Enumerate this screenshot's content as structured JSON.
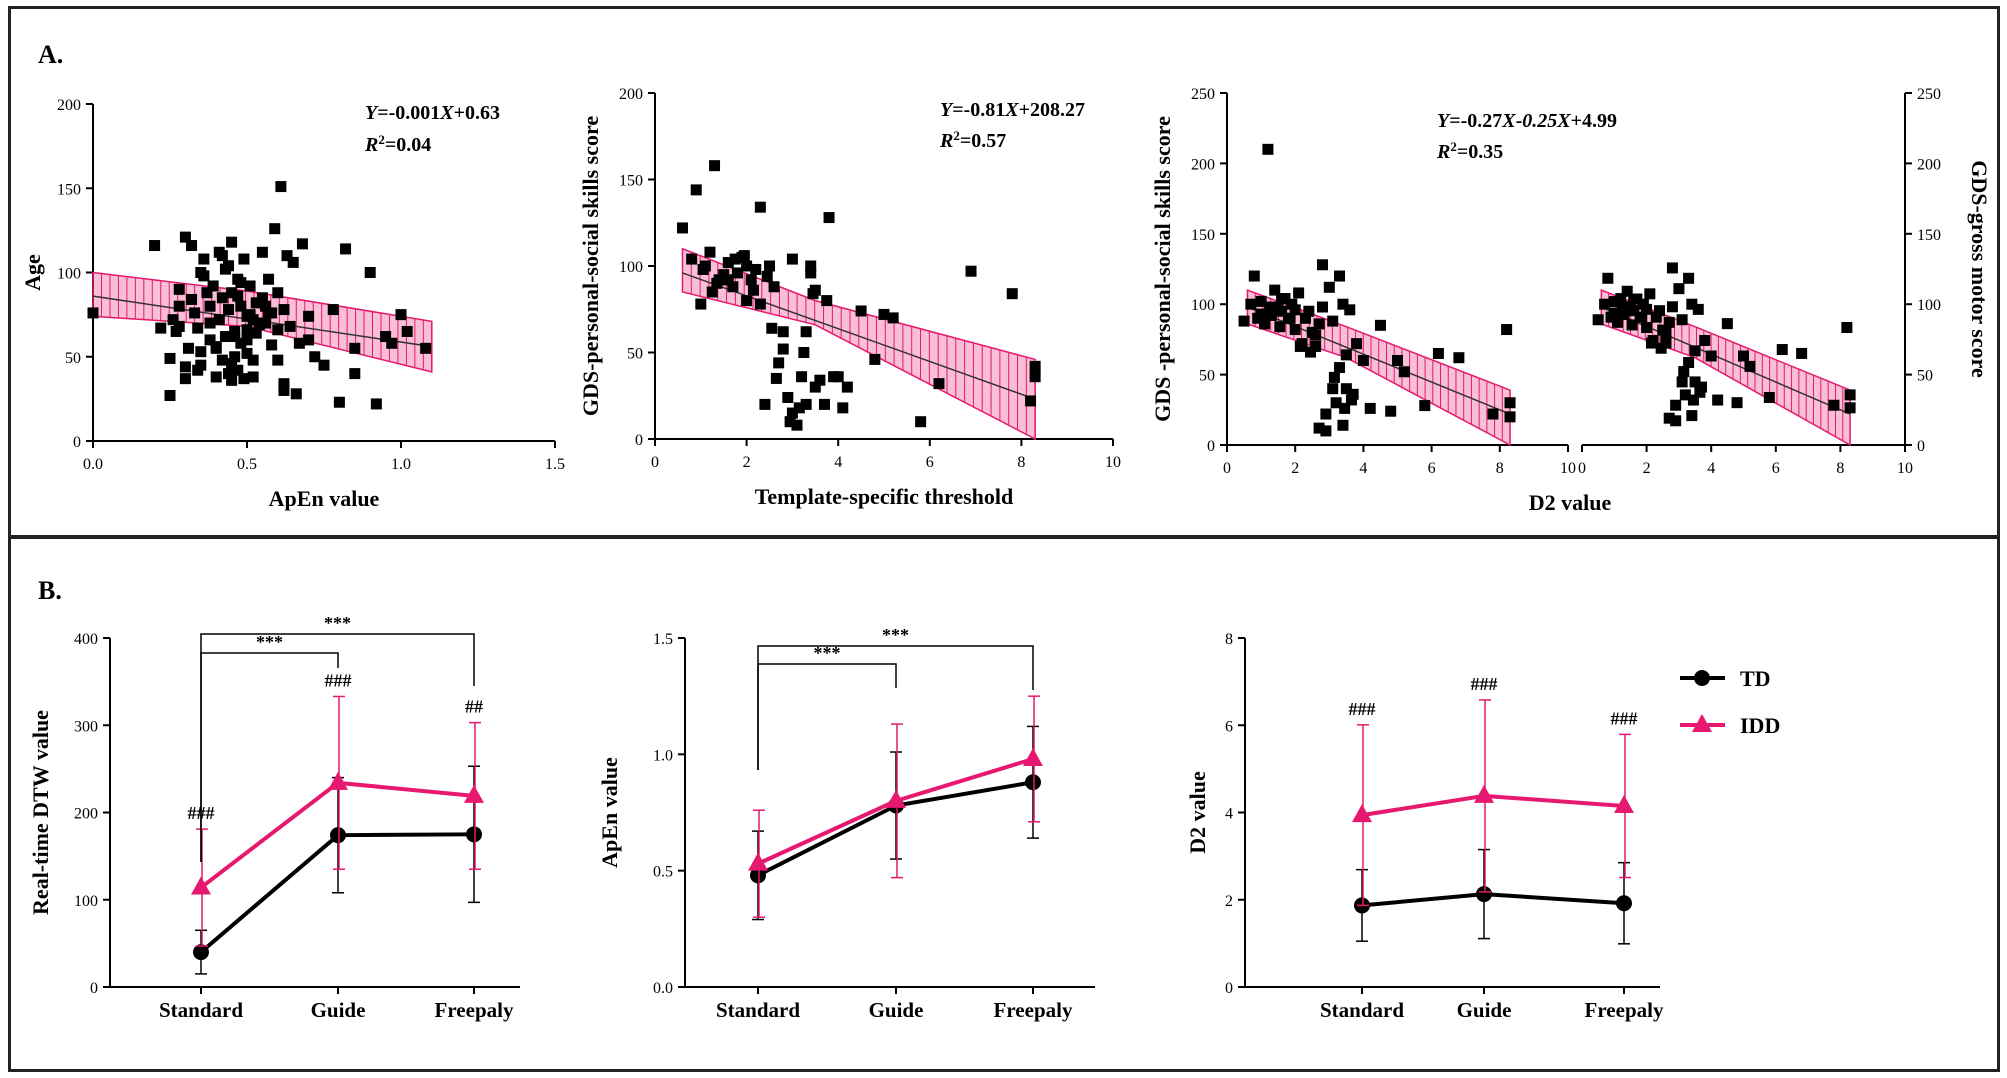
{
  "panels": {
    "a_label": "A.",
    "b_label": "B."
  },
  "colors": {
    "idd": "#e6186f",
    "td": "#000000",
    "band": "#e6186f",
    "points": "#000000"
  },
  "chart_data": [
    {
      "id": "a1",
      "type": "scatter",
      "xlabel": "ApEn value",
      "ylabel": "Age",
      "xlim": [
        0,
        1.5
      ],
      "ylim": [
        0,
        200
      ],
      "xticks": [
        0,
        0.5,
        1.0,
        1.5
      ],
      "xtick_labels": [
        "0.0",
        "0.5",
        "1.0",
        "1.5"
      ],
      "yticks": [
        0,
        50,
        100,
        150,
        200
      ],
      "ytick_labels": [
        "0",
        "50",
        "100",
        "150",
        "200"
      ],
      "equation_parts": [
        "Y",
        "=-0.001",
        "X",
        "+0.63"
      ],
      "r2_parts": [
        "R",
        "2",
        "=0.04"
      ],
      "fit": {
        "x": [
          0.0,
          1.1
        ],
        "y": [
          86,
          56
        ]
      },
      "band_upper": {
        "x": [
          0.0,
          0.5,
          1.1
        ],
        "y": [
          100,
          89,
          71
        ]
      },
      "band_lower": {
        "x": [
          0.0,
          0.5,
          1.1
        ],
        "y": [
          74,
          68,
          41
        ]
      },
      "x": [
        0.0,
        0.2,
        0.22,
        0.25,
        0.25,
        0.26,
        0.27,
        0.28,
        0.28,
        0.3,
        0.3,
        0.31,
        0.32,
        0.33,
        0.34,
        0.35,
        0.35,
        0.36,
        0.37,
        0.38,
        0.38,
        0.39,
        0.4,
        0.4,
        0.41,
        0.41,
        0.42,
        0.42,
        0.43,
        0.43,
        0.44,
        0.44,
        0.45,
        0.45,
        0.45,
        0.46,
        0.46,
        0.47,
        0.47,
        0.48,
        0.48,
        0.49,
        0.49,
        0.5,
        0.5,
        0.5,
        0.51,
        0.51,
        0.52,
        0.52,
        0.53,
        0.53,
        0.54,
        0.55,
        0.55,
        0.56,
        0.57,
        0.58,
        0.58,
        0.59,
        0.6,
        0.6,
        0.61,
        0.62,
        0.62,
        0.63,
        0.64,
        0.65,
        0.66,
        0.67,
        0.68,
        0.7,
        0.72,
        0.75,
        0.78,
        0.8,
        0.82,
        0.85,
        0.85,
        0.9,
        0.92,
        0.95,
        0.97,
        1.0,
        1.02,
        1.08,
        0.32,
        0.36,
        0.44,
        0.48,
        0.52,
        0.56,
        0.42,
        0.38,
        0.46,
        0.54,
        0.3,
        0.4,
        0.5,
        0.6,
        0.35,
        0.45,
        0.28,
        0.34,
        0.47,
        0.57,
        0.62,
        0.7
      ],
      "y": [
        76,
        116,
        67,
        49,
        27,
        72,
        65,
        90,
        80,
        37,
        121,
        55,
        116,
        76,
        67,
        45,
        100,
        108,
        88,
        60,
        70,
        92,
        38,
        55,
        72,
        112,
        48,
        85,
        62,
        102,
        40,
        78,
        88,
        118,
        36,
        50,
        65,
        96,
        42,
        80,
        58,
        108,
        37,
        74,
        60,
        52,
        75,
        92,
        48,
        38,
        64,
        82,
        69,
        85,
        112,
        70,
        96,
        57,
        76,
        126,
        66,
        48,
        151,
        34,
        78,
        110,
        68,
        106,
        28,
        58,
        117,
        60,
        50,
        45,
        78,
        23,
        114,
        55,
        40,
        100,
        22,
        62,
        58,
        75,
        65,
        55,
        84,
        98,
        104,
        94,
        72,
        80,
        110,
        80,
        62,
        70,
        44,
        56,
        66,
        88,
        53,
        46,
        68,
        42,
        86,
        76,
        30,
        74
      ]
    },
    {
      "id": "a2",
      "type": "scatter",
      "xlabel": "Template-specific threshold",
      "ylabel": "GDS-personal-social skills score",
      "xlim": [
        0,
        10
      ],
      "ylim": [
        0,
        200
      ],
      "xticks": [
        0,
        2,
        4,
        6,
        8,
        10
      ],
      "xtick_labels": [
        "0",
        "2",
        "4",
        "6",
        "8",
        "10"
      ],
      "yticks": [
        0,
        50,
        100,
        150,
        200
      ],
      "ytick_labels": [
        "0",
        "50",
        "100",
        "150",
        "200"
      ],
      "equation_parts": [
        "Y",
        "=-0.81",
        "X",
        "+208.27"
      ],
      "r2_parts": [
        "R",
        "2",
        "=0.57"
      ],
      "fit": {
        "x": [
          0.6,
          8.3
        ],
        "y": [
          96,
          23
        ]
      },
      "band_upper": {
        "x": [
          0.6,
          3.5,
          8.3
        ],
        "y": [
          110,
          80,
          46
        ]
      },
      "band_lower": {
        "x": [
          0.6,
          3.5,
          8.3
        ],
        "y": [
          85,
          66,
          0
        ]
      },
      "x": [
        0.6,
        0.8,
        0.9,
        1.0,
        1.1,
        1.2,
        1.3,
        1.4,
        1.5,
        1.6,
        1.6,
        1.7,
        1.8,
        1.9,
        2.0,
        2.0,
        2.1,
        2.2,
        2.3,
        2.3,
        2.4,
        2.5,
        2.6,
        2.7,
        2.8,
        2.8,
        2.9,
        3.0,
        3.0,
        3.1,
        3.2,
        3.3,
        3.3,
        3.4,
        3.4,
        3.5,
        3.5,
        3.6,
        3.7,
        3.8,
        3.9,
        4.0,
        4.1,
        4.2,
        4.5,
        4.8,
        5.0,
        5.2,
        5.8,
        6.2,
        6.9,
        7.8,
        8.2,
        8.3,
        8.3,
        1.25,
        1.45,
        1.75,
        2.15,
        2.55,
        2.65,
        2.95,
        3.15,
        3.45,
        3.75,
        1.05,
        1.35,
        1.95,
        2.45,
        3.25
      ],
      "y": [
        122,
        104,
        144,
        78,
        100,
        108,
        158,
        92,
        95,
        102,
        92,
        88,
        96,
        105,
        100,
        80,
        92,
        98,
        78,
        134,
        20,
        100,
        88,
        44,
        52,
        62,
        24,
        104,
        15,
        8,
        36,
        20,
        62,
        100,
        96,
        30,
        86,
        34,
        20,
        128,
        36,
        36,
        18,
        30,
        74,
        46,
        72,
        70,
        10,
        32,
        97,
        84,
        22,
        42,
        36,
        85,
        92,
        104,
        86,
        64,
        35,
        10,
        18,
        84,
        80,
        98,
        90,
        106,
        94,
        50
      ]
    },
    {
      "id": "a3",
      "type": "scatter",
      "xlabel": "D2 value",
      "ylabel": "GDS -personal-social skills score",
      "y2label": "GDS-gross motor score",
      "xlim": [
        0,
        10
      ],
      "ylim": [
        0,
        250
      ],
      "xticks": [
        0,
        2,
        4,
        6,
        8,
        10
      ],
      "xtick_labels": [
        "0",
        "2",
        "4",
        "6",
        "8",
        "10"
      ],
      "yticks": [
        0,
        50,
        100,
        150,
        200,
        250
      ],
      "ytick_labels": [
        "0",
        "50",
        "100",
        "150",
        "200",
        "250"
      ],
      "equation_parts": [
        "Y",
        "=-0.27",
        "X",
        "-",
        "0.25X",
        "+4.99"
      ],
      "r2_parts": [
        "R",
        "2",
        "=0.35"
      ],
      "fit": {
        "x": [
          0.6,
          8.3
        ],
        "y": [
          98,
          22
        ]
      },
      "band_upper": {
        "x": [
          0.6,
          3.5,
          8.3
        ],
        "y": [
          110,
          84,
          39
        ]
      },
      "band_lower": {
        "x": [
          0.6,
          3.5,
          8.3
        ],
        "y": [
          86,
          62,
          0
        ]
      },
      "x": [
        0.5,
        0.8,
        0.9,
        1.0,
        1.1,
        1.2,
        1.3,
        1.4,
        1.5,
        1.6,
        1.7,
        1.8,
        1.9,
        2.0,
        2.0,
        2.1,
        2.2,
        2.3,
        2.4,
        2.5,
        2.6,
        2.7,
        2.8,
        2.8,
        2.9,
        3.0,
        3.1,
        3.2,
        3.3,
        3.3,
        3.4,
        3.5,
        3.5,
        3.6,
        3.7,
        3.8,
        4.0,
        4.2,
        4.5,
        4.8,
        5.0,
        5.2,
        5.8,
        6.2,
        6.8,
        7.8,
        8.2,
        8.3,
        8.3,
        1.0,
        1.25,
        1.55,
        1.85,
        2.15,
        2.45,
        2.6,
        2.9,
        3.15,
        3.45,
        3.65,
        0.7,
        1.6,
        2.7,
        3.1,
        3.4
      ],
      "y": [
        88,
        120,
        90,
        102,
        86,
        210,
        92,
        110,
        98,
        95,
        104,
        90,
        100,
        82,
        96,
        108,
        72,
        90,
        95,
        80,
        70,
        86,
        98,
        128,
        22,
        112,
        40,
        30,
        120,
        55,
        100,
        64,
        40,
        96,
        36,
        72,
        60,
        26,
        85,
        24,
        60,
        52,
        28,
        65,
        62,
        22,
        82,
        30,
        20,
        93,
        98,
        84,
        90,
        70,
        66,
        78,
        10,
        48,
        26,
        32,
        100,
        104,
        12,
        88,
        14
      ]
    },
    {
      "id": "b1",
      "type": "line",
      "categories": [
        "Standard",
        "Guide",
        "Freepaly"
      ],
      "ylabel": "Real-time DTW value",
      "xlabel": "",
      "ylim": [
        0,
        400
      ],
      "yticks": [
        0,
        100,
        200,
        300,
        400
      ],
      "ytick_labels": [
        "0",
        "100",
        "200",
        "300",
        "400"
      ],
      "series": [
        {
          "name": "TD",
          "values": [
            40,
            174,
            175
          ],
          "error": [
            25,
            66,
            78
          ]
        },
        {
          "name": "IDD",
          "values": [
            114,
            234,
            219
          ],
          "error": [
            67,
            99,
            84
          ]
        }
      ],
      "hash_labels": [
        "###",
        "###",
        "##"
      ],
      "sig_brackets": [
        {
          "from": 0,
          "to": 1,
          "label": "***"
        },
        {
          "from": 0,
          "to": 2,
          "label": "***"
        }
      ]
    },
    {
      "id": "b2",
      "type": "line",
      "categories": [
        "Standard",
        "Guide",
        "Freepaly"
      ],
      "ylabel": "ApEn value",
      "xlabel": "",
      "ylim": [
        0,
        1.5
      ],
      "yticks": [
        0,
        0.5,
        1.0,
        1.5
      ],
      "ytick_labels": [
        "0.0",
        "0.5",
        "1.0",
        "1.5"
      ],
      "series": [
        {
          "name": "TD",
          "values": [
            0.48,
            0.78,
            0.88
          ],
          "error": [
            0.19,
            0.23,
            0.24
          ]
        },
        {
          "name": "IDD",
          "values": [
            0.53,
            0.8,
            0.98
          ],
          "error": [
            0.23,
            0.33,
            0.27
          ]
        }
      ],
      "hash_labels": [
        "",
        "",
        ""
      ],
      "sig_brackets": [
        {
          "from": 0,
          "to": 1,
          "label": "***"
        },
        {
          "from": 0,
          "to": 2,
          "label": "***"
        }
      ]
    },
    {
      "id": "b3",
      "type": "line",
      "categories": [
        "Standard",
        "Guide",
        "Freepaly"
      ],
      "ylabel": "D2 value",
      "xlabel": "",
      "ylim": [
        0,
        8
      ],
      "yticks": [
        0,
        2,
        4,
        6,
        8
      ],
      "ytick_labels": [
        "0",
        "2",
        "4",
        "6",
        "8"
      ],
      "series": [
        {
          "name": "TD",
          "values": [
            1.87,
            2.13,
            1.92
          ],
          "error": [
            0.82,
            1.02,
            0.93
          ]
        },
        {
          "name": "IDD",
          "values": [
            3.94,
            4.38,
            4.15
          ],
          "error": [
            2.07,
            2.2,
            1.64
          ]
        }
      ],
      "hash_labels": [
        "###",
        "###",
        "###"
      ],
      "sig_brackets": []
    }
  ],
  "legend": {
    "items": [
      {
        "name": "TD",
        "marker": "circle"
      },
      {
        "name": "IDD",
        "marker": "triangle"
      }
    ]
  }
}
